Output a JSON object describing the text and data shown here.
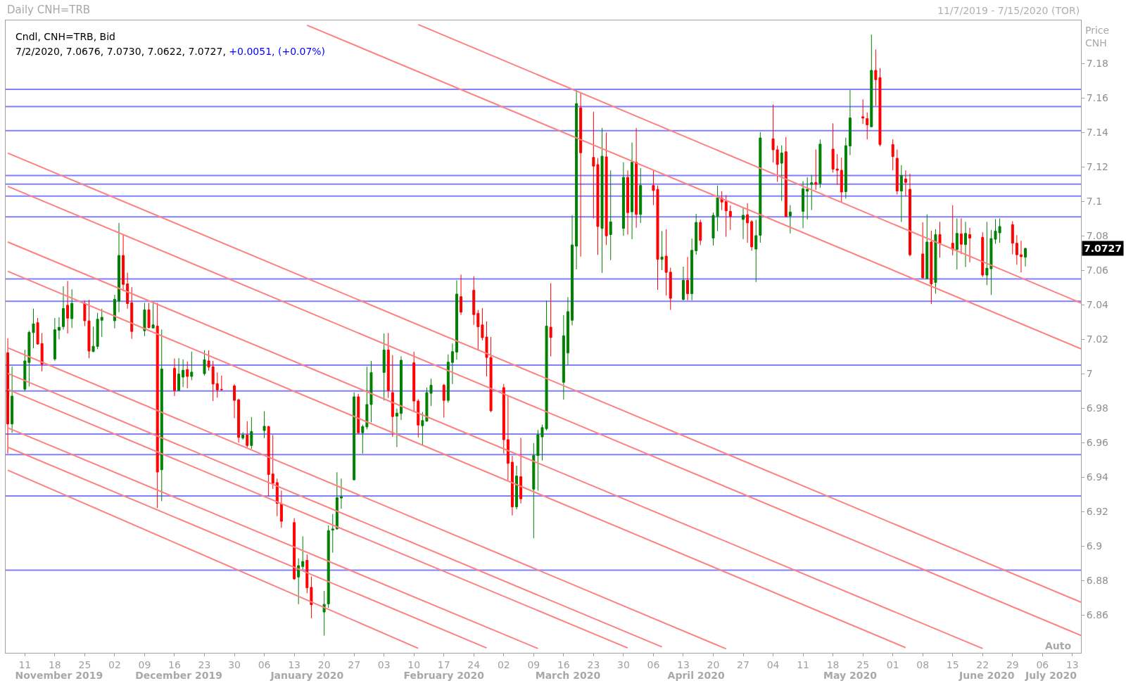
{
  "chart_data": {
    "type": "candlestick",
    "title": "Daily CNH=TRB",
    "subtitle": "11/7/2019 - 7/15/2020 (TOR)",
    "ylabel": "Price CNH",
    "annotations": [
      "Cndl, CNH=TRB, Bid",
      "7/2/2020, 7.0676, 7.0730, 7.0622, 7.0727,",
      "+0.0051, (+0.07%)",
      "7.0727",
      "Auto"
    ],
    "xlim": [
      "2019-11-06T12:00",
      "2020-07-15"
    ],
    "xticks": [
      {
        "value": "2019-11-11",
        "label": "11"
      },
      {
        "value": "2019-11-18",
        "label": "18"
      },
      {
        "value": "2019-11-25",
        "label": "25"
      },
      {
        "value": "2019-12-02",
        "label": "02"
      },
      {
        "value": "2019-12-09",
        "label": "09"
      },
      {
        "value": "2019-12-16",
        "label": "16"
      },
      {
        "value": "2019-12-23",
        "label": "23"
      },
      {
        "value": "2019-12-30",
        "label": "30"
      },
      {
        "value": "2020-01-06",
        "label": "06"
      },
      {
        "value": "2020-01-13",
        "label": "13"
      },
      {
        "value": "2020-01-20",
        "label": "20"
      },
      {
        "value": "2020-01-27",
        "label": "27"
      },
      {
        "value": "2020-02-03",
        "label": "03"
      },
      {
        "value": "2020-02-10",
        "label": "10"
      },
      {
        "value": "2020-02-17",
        "label": "17"
      },
      {
        "value": "2020-02-24",
        "label": "24"
      },
      {
        "value": "2020-03-02",
        "label": "02"
      },
      {
        "value": "2020-03-09",
        "label": "09"
      },
      {
        "value": "2020-03-16",
        "label": "16"
      },
      {
        "value": "2020-03-23",
        "label": "23"
      },
      {
        "value": "2020-03-30",
        "label": "30"
      },
      {
        "value": "2020-04-06",
        "label": "06"
      },
      {
        "value": "2020-04-13",
        "label": "13"
      },
      {
        "value": "2020-04-20",
        "label": "20"
      },
      {
        "value": "2020-04-27",
        "label": "27"
      },
      {
        "value": "2020-05-04",
        "label": "04"
      },
      {
        "value": "2020-05-11",
        "label": "11"
      },
      {
        "value": "2020-05-18",
        "label": "18"
      },
      {
        "value": "2020-05-25",
        "label": "25"
      },
      {
        "value": "2020-06-01",
        "label": "01"
      },
      {
        "value": "2020-06-08",
        "label": "08"
      },
      {
        "value": "2020-06-15",
        "label": "15"
      },
      {
        "value": "2020-06-22",
        "label": "22"
      },
      {
        "value": "2020-06-29",
        "label": "29"
      },
      {
        "value": "2020-07-06",
        "label": "06"
      },
      {
        "value": "2020-07-13",
        "label": "13"
      }
    ],
    "x2lim": [
      "2019-11-06T12:00",
      "2020-07-15"
    ],
    "x2ticks": [
      {
        "value": "2019-11-19",
        "label": "November 2019"
      },
      {
        "value": "2019-12-17",
        "label": "December 2019"
      },
      {
        "value": "2020-01-16",
        "label": "January 2020"
      },
      {
        "value": "2020-02-17",
        "label": "February 2020"
      },
      {
        "value": "2020-03-17",
        "label": "March 2020"
      },
      {
        "value": "2020-04-16",
        "label": "April 2020"
      },
      {
        "value": "2020-05-22",
        "label": "May 2020"
      },
      {
        "value": "2020-06-23",
        "label": "June 2020"
      },
      {
        "value": "2020-07-08",
        "label": "July 2020"
      }
    ],
    "ylim": [
      6.838,
      7.205
    ],
    "yticks": [
      6.86,
      6.88,
      6.9,
      6.92,
      6.94,
      6.96,
      6.98,
      7,
      7.02,
      7.04,
      7.06,
      7.08,
      7.1,
      7.12,
      7.14,
      7.16,
      7.18
    ],
    "x": [
      "2019-11-07",
      "2019-11-08",
      "2019-11-11",
      "2019-11-12",
      "2019-11-13",
      "2019-11-14",
      "2019-11-15",
      "2019-11-18",
      "2019-11-19",
      "2019-11-20",
      "2019-11-21",
      "2019-11-22",
      "2019-11-25",
      "2019-11-26",
      "2019-11-27",
      "2019-11-28",
      "2019-11-29",
      "2019-12-02",
      "2019-12-03",
      "2019-12-04",
      "2019-12-05",
      "2019-12-06",
      "2019-12-09",
      "2019-12-10",
      "2019-12-11",
      "2019-12-12",
      "2019-12-13",
      "2019-12-16",
      "2019-12-17",
      "2019-12-18",
      "2019-12-19",
      "2019-12-20",
      "2019-12-23",
      "2019-12-24",
      "2019-12-25",
      "2019-12-26",
      "2019-12-27",
      "2019-12-30",
      "2019-12-31",
      "2020-01-01",
      "2020-01-02",
      "2020-01-03",
      "2020-01-06",
      "2020-01-07",
      "2020-01-08",
      "2020-01-09",
      "2020-01-10",
      "2020-01-13",
      "2020-01-14",
      "2020-01-15",
      "2020-01-16",
      "2020-01-17",
      "2020-01-20",
      "2020-01-21",
      "2020-01-22",
      "2020-01-23",
      "2020-01-24",
      "2020-01-27",
      "2020-01-28",
      "2020-01-29",
      "2020-01-30",
      "2020-01-31",
      "2020-02-03",
      "2020-02-04",
      "2020-02-05",
      "2020-02-06",
      "2020-02-07",
      "2020-02-10",
      "2020-02-11",
      "2020-02-12",
      "2020-02-13",
      "2020-02-14",
      "2020-02-17",
      "2020-02-18",
      "2020-02-19",
      "2020-02-20",
      "2020-02-21",
      "2020-02-24",
      "2020-02-25",
      "2020-02-26",
      "2020-02-27",
      "2020-02-28",
      "2020-03-02",
      "2020-03-03",
      "2020-03-04",
      "2020-03-05",
      "2020-03-06",
      "2020-03-09",
      "2020-03-10",
      "2020-03-11",
      "2020-03-12",
      "2020-03-13",
      "2020-03-16",
      "2020-03-17",
      "2020-03-18",
      "2020-03-19",
      "2020-03-20",
      "2020-03-23",
      "2020-03-24",
      "2020-03-25",
      "2020-03-26",
      "2020-03-27",
      "2020-03-30",
      "2020-03-31",
      "2020-04-01",
      "2020-04-02",
      "2020-04-03",
      "2020-04-06",
      "2020-04-07",
      "2020-04-08",
      "2020-04-09",
      "2020-04-10",
      "2020-04-13",
      "2020-04-14",
      "2020-04-15",
      "2020-04-16",
      "2020-04-17",
      "2020-04-20",
      "2020-04-21",
      "2020-04-22",
      "2020-04-23",
      "2020-04-24",
      "2020-04-27",
      "2020-04-28",
      "2020-04-29",
      "2020-04-30",
      "2020-05-01",
      "2020-05-04",
      "2020-05-05",
      "2020-05-06",
      "2020-05-07",
      "2020-05-08",
      "2020-05-11",
      "2020-05-12",
      "2020-05-13",
      "2020-05-14",
      "2020-05-15",
      "2020-05-18",
      "2020-05-19",
      "2020-05-20",
      "2020-05-21",
      "2020-05-22",
      "2020-05-25",
      "2020-05-26",
      "2020-05-27",
      "2020-05-28",
      "2020-05-29",
      "2020-06-01",
      "2020-06-02",
      "2020-06-03",
      "2020-06-04",
      "2020-06-05",
      "2020-06-08",
      "2020-06-09",
      "2020-06-10",
      "2020-06-11",
      "2020-06-12",
      "2020-06-15",
      "2020-06-16",
      "2020-06-17",
      "2020-06-18",
      "2020-06-19",
      "2020-06-22",
      "2020-06-23",
      "2020-06-24",
      "2020-06-25",
      "2020-06-26",
      "2020-06-29",
      "2020-06-30",
      "2020-07-01",
      "2020-07-02"
    ],
    "ohlc": [
      [
        7.0121,
        7.0205,
        6.9536,
        6.9708
      ],
      [
        6.9708,
        7.0041,
        6.9657,
        6.987
      ],
      [
        6.991,
        7.0139,
        6.9899,
        7.0074
      ],
      [
        7.0065,
        7.0249,
        6.9926,
        7.024
      ],
      [
        7.0238,
        7.0377,
        7.0148,
        7.0289
      ],
      [
        7.0296,
        7.0323,
        7.0168,
        7.0172
      ],
      [
        7.0174,
        7.0236,
        7.0014,
        7.0054
      ],
      [
        7.0085,
        7.0323,
        7.0074,
        7.0255
      ],
      [
        7.0252,
        7.0327,
        7.0199,
        7.0269
      ],
      [
        7.0273,
        7.0507,
        7.0256,
        7.0378
      ],
      [
        7.0397,
        7.0538,
        7.0233,
        7.0322
      ],
      [
        7.0319,
        7.0489,
        7.0265,
        7.0408
      ],
      [
        7.0408,
        7.0424,
        7.0276,
        7.0307
      ],
      [
        7.0306,
        7.0428,
        7.009,
        7.0131
      ],
      [
        7.0128,
        7.0273,
        7.0125,
        7.0159
      ],
      [
        7.0158,
        7.0353,
        7.0142,
        7.0316
      ],
      [
        7.031,
        7.0377,
        7.0213,
        7.0327
      ],
      [
        7.0307,
        7.0458,
        7.0263,
        7.0431
      ],
      [
        7.0421,
        7.0875,
        7.0357,
        7.0686
      ],
      [
        7.0686,
        7.0807,
        7.0478,
        7.0518
      ],
      [
        7.0521,
        7.0586,
        7.0377,
        7.0407
      ],
      [
        7.0411,
        7.0502,
        7.0202,
        7.0245
      ],
      [
        7.0249,
        7.0411,
        7.0218,
        7.037
      ],
      [
        7.037,
        7.0411,
        7.0263,
        7.0267
      ],
      [
        7.0265,
        7.0408,
        7.0263,
        7.0283
      ],
      [
        7.0276,
        7.0411,
        6.922,
        6.9429
      ],
      [
        6.9442,
        7.0256,
        6.926,
        7.0027
      ],
      [
        7.0031,
        7.0088,
        6.987,
        6.9902
      ],
      [
        6.9902,
        7.009,
        6.9902,
        6.9998
      ],
      [
        6.998,
        7.0083,
        6.9922,
        7.002
      ],
      [
        7.0024,
        7.0071,
        6.9915,
        6.9984
      ],
      [
        6.9984,
        7.0128,
        6.9962,
        7.0009
      ],
      [
        7.0,
        7.0135,
        6.9989,
        7.0081
      ],
      [
        7.0074,
        7.0135,
        7.0018,
        7.0038
      ],
      [
        7.004,
        7.0074,
        6.9841,
        6.994
      ],
      [
        6.9942,
        7.0007,
        6.9861,
        6.9906
      ],
      [
        6.9909,
        6.9989,
        6.9902,
        6.9907
      ],
      [
        6.9929,
        6.994,
        6.9742,
        6.9845
      ],
      [
        6.9848,
        6.9855,
        6.96,
        6.963
      ],
      [
        6.9626,
        6.966,
        6.9617,
        6.9644
      ],
      [
        6.9644,
        6.9724,
        6.957,
        6.9583
      ],
      [
        6.9583,
        6.9748,
        6.9563,
        6.9664
      ],
      [
        6.967,
        6.9782,
        6.9626,
        6.9695
      ],
      [
        6.9693,
        6.9697,
        6.9287,
        6.9415
      ],
      [
        6.9418,
        6.9644,
        6.9331,
        6.9364
      ],
      [
        6.9368,
        6.9391,
        6.9173,
        6.9247
      ],
      [
        6.9243,
        6.9321,
        6.9105,
        6.9143
      ],
      [
        6.9136,
        6.9162,
        6.8803,
        6.8809
      ],
      [
        6.882,
        6.8928,
        6.8662,
        6.8886
      ],
      [
        6.8881,
        6.9056,
        6.8863,
        6.891
      ],
      [
        6.8917,
        6.8951,
        6.8726,
        6.8758
      ],
      [
        6.876,
        6.8823,
        6.8581,
        6.8659
      ],
      [
        6.8617,
        6.8739,
        6.848,
        6.8661
      ],
      [
        6.8664,
        6.9119,
        6.8641,
        6.9089
      ],
      [
        6.9092,
        6.9186,
        6.8961,
        6.9099
      ],
      [
        6.9099,
        6.9428,
        6.9095,
        6.928
      ],
      [
        6.9278,
        6.9391,
        6.9216,
        6.9286
      ],
      [
        6.9384,
        6.9892,
        6.9381,
        6.9866
      ],
      [
        6.9866,
        6.9883,
        6.965,
        6.9657
      ],
      [
        6.9657,
        6.9704,
        6.9536,
        6.9693
      ],
      [
        6.9691,
        7.0041,
        6.9677,
        6.9821
      ],
      [
        6.9821,
        7.0074,
        6.9718,
        7.0006
      ],
      [
        7.0007,
        7.0233,
        6.9845,
        7.0137
      ],
      [
        7.0137,
        7.0236,
        6.9859,
        6.9902
      ],
      [
        6.989,
        7.0108,
        6.9633,
        6.9751
      ],
      [
        6.9754,
        6.9798,
        6.9574,
        6.9771
      ],
      [
        6.9769,
        7.0101,
        6.9731,
        7.0078
      ],
      [
        7.0063,
        7.0128,
        6.9778,
        6.9841
      ],
      [
        6.9841,
        6.9852,
        6.963,
        6.9702
      ],
      [
        6.9698,
        6.9778,
        6.9587,
        6.9728
      ],
      [
        6.9724,
        6.9919,
        6.9722,
        6.989
      ],
      [
        6.9886,
        6.9971,
        6.9812,
        6.9933
      ],
      [
        6.9933,
        6.994,
        6.9745,
        6.9845
      ],
      [
        6.9845,
        7.0112,
        6.9832,
        7.0067
      ],
      [
        7.0065,
        7.0175,
        6.994,
        7.0128
      ],
      [
        7.0125,
        7.0542,
        7.0081,
        7.0462
      ],
      [
        7.0447,
        7.0575,
        7.0341,
        7.0357
      ],
      [
        7.0484,
        7.0565,
        7.0283,
        7.0343
      ],
      [
        7.035,
        7.037,
        7.0135,
        7.0272
      ],
      [
        7.0283,
        7.0381,
        7.0193,
        7.0209
      ],
      [
        7.0213,
        7.0303,
        6.9984,
        7.0094
      ],
      [
        7.0094,
        7.0213,
        6.9776,
        6.9785
      ],
      [
        6.9919,
        6.994,
        6.9536,
        6.9617
      ],
      [
        6.9617,
        6.987,
        6.9381,
        6.948
      ],
      [
        6.9486,
        6.9523,
        6.9177,
        6.9227
      ],
      [
        6.9227,
        6.9466,
        6.9213,
        6.9406
      ],
      [
        6.9402,
        6.9628,
        6.9247,
        6.9274
      ],
      [
        6.933,
        6.9597,
        6.9045,
        6.9525
      ],
      [
        6.9525,
        6.9673,
        6.9321,
        6.9646
      ],
      [
        6.9633,
        6.9704,
        6.9496,
        6.9687
      ],
      [
        6.968,
        7.0424,
        6.9671,
        7.0276
      ],
      [
        7.027,
        7.0525,
        7.01,
        7.021
      ],
      [
        6.995,
        7.034,
        6.985,
        7.022
      ],
      [
        7.012,
        7.0444,
        7.005,
        7.036
      ],
      [
        7.031,
        7.0919,
        7.028,
        7.0747
      ],
      [
        7.074,
        7.1645,
        7.0605,
        7.1567
      ],
      [
        7.1543,
        7.1628,
        7.0679,
        7.1282
      ],
      [
        7.1255,
        7.152,
        7.0901,
        7.1204
      ],
      [
        7.1213,
        7.1251,
        7.069,
        7.0854
      ],
      [
        7.0843,
        7.1426,
        7.0585,
        7.1262
      ],
      [
        7.1258,
        7.1399,
        7.0746,
        7.08
      ],
      [
        7.0807,
        7.118,
        7.0659,
        7.0881
      ],
      [
        7.0843,
        7.1227,
        7.08,
        7.1139
      ],
      [
        7.1139,
        7.118,
        7.0807,
        7.0935
      ],
      [
        7.0939,
        7.1341,
        7.078,
        7.1227
      ],
      [
        7.1227,
        7.1426,
        7.0847,
        7.0924
      ],
      [
        7.0924,
        7.1193,
        7.0874,
        7.1092
      ],
      [
        7.1092,
        7.1177,
        7.0978,
        7.1063
      ],
      [
        7.1069,
        7.1092,
        7.0487,
        7.0663
      ],
      [
        7.0663,
        7.0827,
        7.0601,
        7.0677
      ],
      [
        7.0682,
        7.0838,
        7.0453,
        7.0588
      ],
      [
        7.0589,
        7.0615,
        7.037,
        7.0437
      ],
      [
        7.043,
        7.0621,
        7.0426,
        7.0542
      ],
      [
        7.0542,
        7.0677,
        7.0426,
        7.0464
      ],
      [
        7.0464,
        7.0784,
        7.0426,
        7.0716
      ],
      [
        7.0713,
        7.0928,
        7.069,
        7.0878
      ],
      [
        7.0878,
        7.0894,
        7.0746,
        7.0773
      ],
      [
        7.0787,
        7.0935,
        7.0744,
        7.0919
      ],
      [
        7.0912,
        7.1092,
        7.0827,
        7.102
      ],
      [
        7.1019,
        7.1059,
        7.0949,
        7.0996
      ],
      [
        7.1,
        7.1036,
        7.0794,
        7.0945
      ],
      [
        7.0942,
        7.0976,
        7.0834,
        7.0912
      ],
      [
        7.0895,
        7.0962,
        7.0781,
        7.0919
      ],
      [
        7.0922,
        7.0989,
        7.076,
        7.0875
      ],
      [
        7.0882,
        7.0891,
        7.0713,
        7.0736
      ],
      [
        7.0723,
        7.0892,
        7.0532,
        7.0801
      ],
      [
        7.0803,
        7.1402,
        7.076,
        7.1368
      ],
      [
        7.1363,
        7.1561,
        7.1225,
        7.1299
      ],
      [
        7.1299,
        7.1323,
        7.1113,
        7.1214
      ],
      [
        7.1221,
        7.1325,
        7.1003,
        7.1281
      ],
      [
        7.1288,
        7.1373,
        7.0908,
        7.0911
      ],
      [
        7.0915,
        7.0978,
        7.0814,
        7.0938
      ],
      [
        7.0942,
        7.1117,
        7.0844,
        7.1073
      ],
      [
        7.1059,
        7.114,
        7.0895,
        7.107
      ],
      [
        7.1099,
        7.1153,
        7.0949,
        7.1108
      ],
      [
        7.111,
        7.1301,
        7.1067,
        7.1099
      ],
      [
        7.1103,
        7.1359,
        7.1079,
        7.1332
      ],
      [
        7.1303,
        7.1453,
        7.1167,
        7.1187
      ],
      [
        7.1188,
        7.1274,
        7.1097,
        7.118
      ],
      [
        7.118,
        7.1254,
        7.0996,
        7.1054
      ],
      [
        7.1056,
        7.137,
        7.1016,
        7.1323
      ],
      [
        7.1321,
        7.1646,
        7.1268,
        7.1484
      ],
      [
        7.1491,
        7.1592,
        7.1449,
        7.1483
      ],
      [
        7.148,
        7.1516,
        7.1359,
        7.1444
      ],
      [
        7.1433,
        7.1968,
        7.143,
        7.176
      ],
      [
        7.176,
        7.1881,
        7.1554,
        7.1706
      ],
      [
        7.1718,
        7.1773,
        7.1319,
        7.133
      ],
      [
        7.133,
        7.136,
        7.118,
        7.126
      ],
      [
        7.125,
        7.13,
        7.104,
        7.106
      ],
      [
        7.106,
        7.121,
        7.088,
        7.115
      ],
      [
        7.113,
        7.118,
        7.103,
        7.111
      ],
      [
        7.107,
        7.116,
        7.068,
        7.069
      ],
      [
        7.0695,
        7.0878,
        7.0552,
        7.0556
      ],
      [
        7.0552,
        7.0924,
        7.0548,
        7.0764
      ],
      [
        7.0764,
        7.083,
        7.0404,
        7.0521
      ],
      [
        7.0529,
        7.0838,
        7.0464,
        7.0807
      ],
      [
        7.0807,
        7.0881,
        7.0673,
        7.0757
      ],
      [
        7.0757,
        7.0978,
        7.0686,
        7.072
      ],
      [
        7.072,
        7.0901,
        7.0605,
        7.0814
      ],
      [
        7.0811,
        7.0901,
        7.0693,
        7.0751
      ],
      [
        7.0749,
        7.0881,
        7.0619,
        7.0814
      ],
      [
        7.0807,
        7.0847,
        7.0646,
        7.0787
      ],
      [
        7.0791,
        7.0821,
        7.0561,
        7.0572
      ],
      [
        7.0572,
        7.0881,
        7.0514,
        7.0612
      ],
      [
        7.0609,
        7.0834,
        7.0457,
        7.0784
      ],
      [
        7.078,
        7.0897,
        7.0753,
        7.0827
      ],
      [
        7.0817,
        7.0901,
        7.076,
        7.0854
      ],
      [
        7.0865,
        7.0884,
        7.0693,
        7.0757
      ],
      [
        7.0757,
        7.0804,
        7.0632,
        7.069
      ],
      [
        7.069,
        7.0771,
        7.0588,
        7.0679
      ],
      [
        7.0676,
        7.073,
        7.0622,
        7.0727
      ]
    ],
    "series": [
      {
        "type": "line",
        "color": "#ff8080",
        "x": [
          "2020-02-11",
          "2020-07-15"
        ],
        "values": [
          7.2026,
          7.041
        ]
      },
      {
        "type": "line",
        "color": "#ff8080",
        "x": [
          "2020-01-16",
          "2020-07-15"
        ],
        "values": [
          7.2022,
          7.0144
        ]
      },
      {
        "type": "line",
        "color": "#ff8080",
        "x": [
          "2019-11-07",
          "2020-07-15"
        ],
        "values": [
          7.128,
          6.8674
        ]
      },
      {
        "type": "line",
        "color": "#ff8080",
        "x": [
          "2019-11-07",
          "2020-07-15"
        ],
        "values": [
          7.1087,
          6.8481
        ]
      },
      {
        "type": "line",
        "color": "#ff8080",
        "x": [
          "2019-11-07",
          "2020-06-22"
        ],
        "values": [
          7.0764,
          6.8405
        ]
      },
      {
        "type": "line",
        "color": "#ff8080",
        "x": [
          "2019-11-07",
          "2020-06-04"
        ],
        "values": [
          7.0594,
          6.841
        ]
      },
      {
        "type": "line",
        "color": "#ff8080",
        "x": [
          "2019-11-07",
          "2020-04-23"
        ],
        "values": [
          7.015,
          6.8403
        ]
      },
      {
        "type": "line",
        "color": "#ff8080",
        "x": [
          "2019-11-07",
          "2020-04-08"
        ],
        "values": [
          7.0001,
          6.8414
        ]
      },
      {
        "type": "line",
        "color": "#ff8080",
        "x": [
          "2019-11-07",
          "2020-03-31"
        ],
        "values": [
          6.9908,
          6.8408
        ]
      },
      {
        "type": "line",
        "color": "#ff8080",
        "x": [
          "2019-11-07",
          "2020-03-10"
        ],
        "values": [
          6.9686,
          6.8405
        ]
      },
      {
        "type": "line",
        "color": "#ff8080",
        "x": [
          "2019-11-07",
          "2020-02-27"
        ],
        "values": [
          6.9573,
          6.8408
        ]
      },
      {
        "type": "line",
        "color": "#ff8080",
        "x": [
          "2019-11-07",
          "2020-02-11"
        ],
        "values": [
          6.944,
          6.8406
        ]
      }
    ],
    "ref_lines": [
      {
        "axis": "y",
        "value": 7.165,
        "color": "#8080ff"
      },
      {
        "axis": "y",
        "value": 7.155,
        "color": "#8080ff"
      },
      {
        "axis": "y",
        "value": 7.141,
        "color": "#8080ff"
      },
      {
        "axis": "y",
        "value": 7.115,
        "color": "#8080ff"
      },
      {
        "axis": "y",
        "value": 7.11,
        "color": "#8080ff"
      },
      {
        "axis": "y",
        "value": 7.103,
        "color": "#8080ff"
      },
      {
        "axis": "y",
        "value": 7.091,
        "color": "#8080ff"
      },
      {
        "axis": "y",
        "value": 7.055,
        "color": "#8080ff"
      },
      {
        "axis": "y",
        "value": 7.042,
        "color": "#8080ff"
      },
      {
        "axis": "y",
        "value": 7.005,
        "color": "#8080ff"
      },
      {
        "axis": "y",
        "value": 6.99,
        "color": "#8080ff"
      },
      {
        "axis": "y",
        "value": 6.965,
        "color": "#8080ff"
      },
      {
        "axis": "y",
        "value": 6.953,
        "color": "#8080ff"
      },
      {
        "axis": "y",
        "value": 6.929,
        "color": "#8080ff"
      },
      {
        "axis": "y",
        "value": 6.886,
        "color": "#8080ff"
      }
    ]
  }
}
